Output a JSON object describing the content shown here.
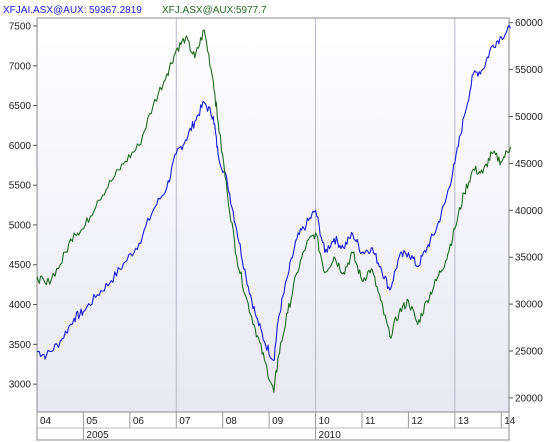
{
  "legend": {
    "series1_name": "XFJAI.ASX@AUX:",
    "series1_value": "59367.2819",
    "series2_name": "XFJ.ASX@AUX:",
    "series2_value": "5977.7"
  },
  "colors": {
    "series1": "#1a1adc",
    "series2": "#1f6b1f",
    "plot_bg_top": "#ffffff",
    "plot_bg_bottom": "#e8e8f4",
    "grid": "#d0d0dc"
  },
  "chart_data": {
    "type": "line",
    "x_start": "2004-01",
    "x_end": "2014-03",
    "left_axis": {
      "ylim": [
        2650,
        7600
      ],
      "ticks": [
        3000,
        3500,
        4000,
        4500,
        5000,
        5500,
        6000,
        6500,
        7000,
        7500
      ]
    },
    "right_axis": {
      "ylim": [
        18500,
        60500
      ],
      "ticks": [
        20000,
        25000,
        30000,
        35000,
        40000,
        45000,
        50000,
        55000,
        60000
      ]
    },
    "x_tick_labels": [
      "04",
      "05",
      "06",
      "07",
      "08",
      "09",
      "10",
      "11",
      "12",
      "13",
      "14"
    ],
    "x_ticks": [
      2004,
      2005,
      2006,
      2007,
      2008,
      2009,
      2010,
      2011,
      2012,
      2013,
      2014
    ],
    "year_labels": [
      {
        "x": 2005,
        "label": "2005"
      },
      {
        "x": 2010,
        "label": "2010"
      }
    ],
    "vertical_grid_x": [
      2007,
      2010,
      2013
    ],
    "series": [
      {
        "axis": "right",
        "x": [
          2004.0,
          2004.2,
          2004.5,
          2004.8,
          2005.0,
          2005.3,
          2005.6,
          2005.9,
          2006.2,
          2006.5,
          2006.8,
          2007.0,
          2007.2,
          2007.4,
          2007.6,
          2007.8,
          2007.9,
          2008.1,
          2008.3,
          2008.5,
          2008.7,
          2008.9,
          2009.1,
          2009.2,
          2009.4,
          2009.6,
          2009.8,
          2010.0,
          2010.2,
          2010.4,
          2010.6,
          2010.8,
          2011.0,
          2011.2,
          2011.4,
          2011.6,
          2011.8,
          2012.0,
          2012.2,
          2012.4,
          2012.6,
          2012.8,
          2013.0,
          2013.2,
          2013.4,
          2013.6,
          2013.8,
          2014.0,
          2014.2
        ],
        "y": [
          25000,
          24500,
          26000,
          28500,
          29200,
          31000,
          32500,
          34500,
          36500,
          40000,
          42500,
          46000,
          47500,
          49500,
          51500,
          50000,
          46000,
          43000,
          38000,
          33000,
          29000,
          26000,
          24000,
          28500,
          33000,
          37000,
          38500,
          40000,
          35500,
          37000,
          36000,
          37500,
          35500,
          36000,
          34000,
          31500,
          35000,
          35500,
          34000,
          36000,
          38000,
          41000,
          45000,
          50000,
          54500,
          55000,
          57500,
          58500,
          59400
        ]
      },
      {
        "axis": "left",
        "x": [
          2004.0,
          2004.2,
          2004.5,
          2004.8,
          2005.0,
          2005.3,
          2005.6,
          2005.9,
          2006.2,
          2006.5,
          2006.8,
          2007.0,
          2007.2,
          2007.4,
          2007.6,
          2007.8,
          2007.9,
          2008.1,
          2008.3,
          2008.5,
          2008.7,
          2008.9,
          2009.1,
          2009.2,
          2009.4,
          2009.6,
          2009.8,
          2010.0,
          2010.2,
          2010.4,
          2010.6,
          2010.8,
          2011.0,
          2011.2,
          2011.4,
          2011.6,
          2011.8,
          2012.0,
          2012.2,
          2012.4,
          2012.6,
          2012.8,
          2013.0,
          2013.2,
          2013.4,
          2013.6,
          2013.8,
          2014.0,
          2014.2
        ],
        "y": [
          4350,
          4250,
          4500,
          4900,
          4950,
          5300,
          5550,
          5800,
          6000,
          6500,
          6900,
          7200,
          7350,
          7100,
          7450,
          6800,
          6300,
          5400,
          4600,
          4100,
          3700,
          3300,
          2900,
          3350,
          3900,
          4400,
          4750,
          4900,
          4400,
          4600,
          4400,
          4650,
          4300,
          4450,
          4050,
          3600,
          3900,
          4050,
          3750,
          4050,
          4300,
          4550,
          4950,
          5400,
          5700,
          5650,
          5900,
          5800,
          5980
        ]
      }
    ]
  }
}
